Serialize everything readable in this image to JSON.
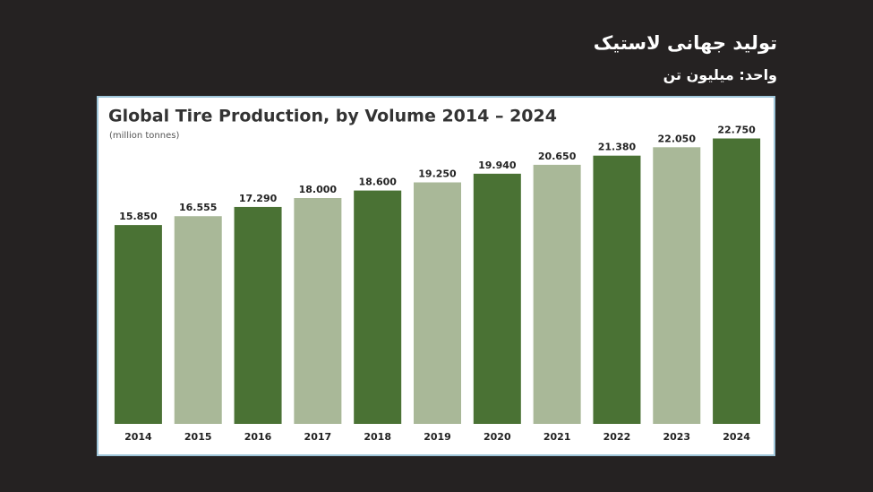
{
  "header": {
    "title": "تولید جهانی لاستیک",
    "unit": "واحد: میلیون تن"
  },
  "chart_data": {
    "type": "bar",
    "title": "Global Tire Production, by Volume 2014 – 2024",
    "subtitle": "(million tonnes)",
    "categories": [
      "2014",
      "2015",
      "2016",
      "2017",
      "2018",
      "2019",
      "2020",
      "2021",
      "2022",
      "2023",
      "2024"
    ],
    "values": [
      15.85,
      16.555,
      17.29,
      18.0,
      18.6,
      19.25,
      19.94,
      20.65,
      21.38,
      22.05,
      22.75
    ],
    "value_labels": [
      "15.850",
      "16.555",
      "17.290",
      "18.000",
      "18.600",
      "19.250",
      "19.940",
      "20.650",
      "21.380",
      "22.050",
      "22.750"
    ],
    "colors": [
      "#4a7234",
      "#a9b898",
      "#4a7234",
      "#a9b898",
      "#4a7234",
      "#a9b898",
      "#4a7234",
      "#a9b898",
      "#4a7234",
      "#a9b898",
      "#4a7234"
    ],
    "ylim": [
      0,
      24
    ]
  }
}
